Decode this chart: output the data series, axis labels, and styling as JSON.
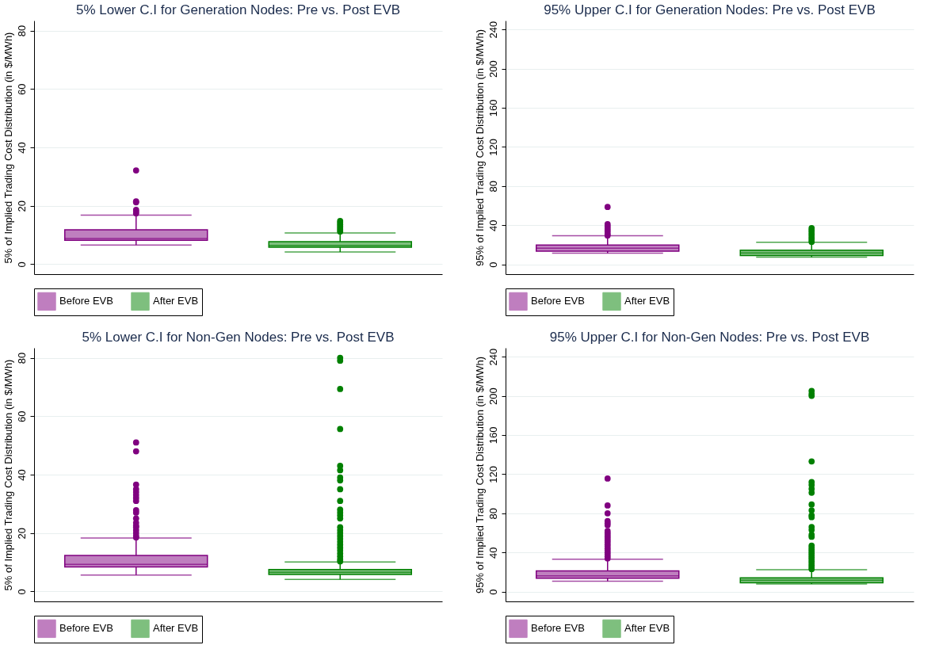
{
  "chart_data": [
    {
      "type": "box",
      "title": "5% Lower C.I for Generation Nodes: Pre vs. Post EVB",
      "ylabel": "5% of Implied Trading Cost Distribution (in $/MWh)",
      "categories": [
        null,
        null
      ],
      "ylim": [
        -3.4,
        83.4
      ],
      "yticks": [
        0,
        20,
        40,
        60,
        80
      ],
      "grid": "y",
      "legend": "bottom",
      "tick_labels": "y",
      "series": [
        {
          "name": "Before EVB",
          "color": "#800080",
          "boxes": [
            {
              "low": 6.6,
              "q1": 8.2,
              "median": 8.8,
              "q3": 11.8,
              "high": 16.8,
              "outliers": [
                17.4,
                18.0,
                18.6,
                21.2,
                21.5,
                32.1
              ]
            },
            null
          ]
        },
        {
          "name": "After EVB",
          "color": "#008000",
          "boxes": [
            null,
            {
              "low": 4.2,
              "q1": 5.8,
              "median": 6.4,
              "q3": 7.7,
              "high": 10.7,
              "outliers": [
                11.2,
                11.8,
                12.4,
                13.0,
                13.6,
                14.2,
                14.8
              ]
            }
          ]
        }
      ]
    },
    {
      "type": "box",
      "title": "95% Upper C.I for Generation Nodes: Pre vs. Post EVB",
      "ylabel": "95% of Implied Trading Cost Distribution (in $/MWh)",
      "categories": [
        null,
        null
      ],
      "ylim": [
        -10,
        249
      ],
      "yticks": [
        0,
        40,
        80,
        120,
        160,
        200,
        240
      ],
      "grid": "y",
      "legend": "bottom",
      "tick_labels": "y",
      "series": [
        {
          "name": "Before EVB",
          "color": "#800080",
          "boxes": [
            {
              "low": 11.4,
              "q1": 13.5,
              "median": 16.5,
              "q3": 19.8,
              "high": 29.2,
              "outliers": [
                29.5,
                31,
                33,
                35,
                37,
                39,
                41,
                58.6
              ]
            },
            null
          ]
        },
        {
          "name": "After EVB",
          "color": "#008000",
          "boxes": [
            null,
            {
              "low": 7.5,
              "q1": 9,
              "median": 11.7,
              "q3": 14.4,
              "high": 22.6,
              "outliers": [
                23,
                25,
                27,
                29,
                31,
                33,
                35,
                37
              ]
            }
          ]
        }
      ]
    },
    {
      "type": "box",
      "title": "5% Lower C.I for Non-Gen Nodes: Pre vs. Post EVB",
      "ylabel": "5% of Implied Trading Cost Distribution (in $/MWh)",
      "categories": [
        null,
        null
      ],
      "ylim": [
        -3.4,
        83.4
      ],
      "yticks": [
        0,
        20,
        40,
        60,
        80
      ],
      "grid": "y",
      "legend": "bottom",
      "tick_labels": "y",
      "series": [
        {
          "name": "Before EVB",
          "color": "#800080",
          "boxes": [
            {
              "low": 5.6,
              "q1": 8.4,
              "median": 9.25,
              "q3": 12.3,
              "high": 18.3,
              "outliers": [
                18.5,
                19,
                20,
                21,
                22,
                22.5,
                23.5,
                25,
                27,
                27.8,
                31,
                32,
                33,
                34,
                35,
                36.6,
                48,
                51
              ]
            },
            null
          ]
        },
        {
          "name": "After EVB",
          "color": "#008000",
          "boxes": [
            null,
            {
              "low": 4.1,
              "q1": 5.8,
              "median": 6.6,
              "q3": 7.5,
              "high": 10.1,
              "outliers": [
                10.3,
                11,
                12,
                13,
                14,
                15,
                16,
                17,
                18,
                19,
                20,
                21,
                22,
                25,
                26,
                27,
                28,
                31,
                35,
                38,
                39,
                41.5,
                43,
                55.6,
                69.3,
                79,
                80
              ]
            }
          ]
        }
      ]
    },
    {
      "type": "box",
      "title": "95% Upper C.I for Non-Gen Nodes: Pre vs. Post EVB",
      "ylabel": "95% of Implied Trading Cost Distribution (in $/MWh)",
      "categories": [
        null,
        null
      ],
      "ylim": [
        -10,
        249
      ],
      "yticks": [
        0,
        40,
        80,
        120,
        160,
        200,
        240
      ],
      "grid": "y",
      "legend": "bottom",
      "tick_labels": "y",
      "series": [
        {
          "name": "Before EVB",
          "color": "#800080",
          "boxes": [
            {
              "low": 10.7,
              "q1": 13.7,
              "median": 16.1,
              "q3": 21.2,
              "high": 33.1,
              "outliers": [
                34,
                36,
                38,
                40,
                42,
                44,
                46,
                48,
                50,
                52,
                54,
                56,
                58,
                60,
                62,
                68,
                70,
                72,
                80,
                88,
                115.5
              ]
            },
            null
          ]
        },
        {
          "name": "After EVB",
          "color": "#008000",
          "boxes": [
            null,
            {
              "low": 7.8,
              "q1": 9,
              "median": 11.6,
              "q3": 14,
              "high": 22.4,
              "outliers": [
                23,
                25,
                27,
                29,
                31,
                33,
                35,
                37,
                39,
                41,
                43,
                45,
                47,
                56,
                58,
                63,
                66,
                76,
                78,
                83,
                89,
                101,
                105,
                109,
                112,
                133,
                200,
                202,
                205
              ]
            }
          ]
        }
      ]
    }
  ]
}
